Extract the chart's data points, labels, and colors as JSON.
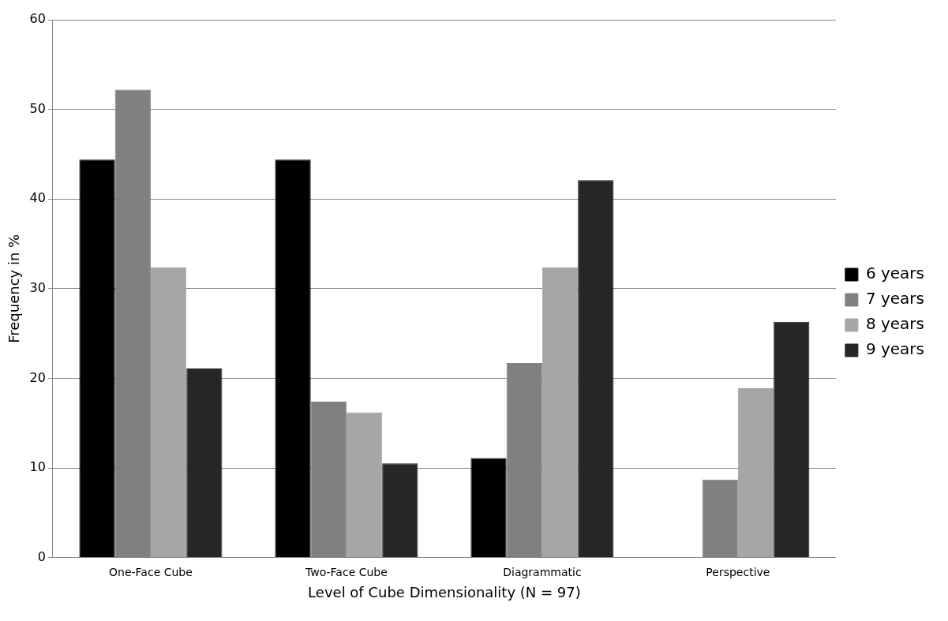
{
  "chart_data": {
    "type": "bar",
    "categories": [
      "One-Face Cube",
      "Two-Face Cube",
      "Diagrammatic",
      "Perspective"
    ],
    "xlabel": "Level of Cube Dimensionality (N = 97)",
    "ylabel": "Frequency in %",
    "ylim": [
      0,
      60
    ],
    "yticks": [
      0,
      10,
      20,
      30,
      40,
      50,
      60
    ],
    "grid": "y",
    "legend": "right",
    "series": [
      {
        "name": "6 years",
        "color": "#000000",
        "values": [
          44.4,
          44.4,
          11.1,
          0
        ]
      },
      {
        "name": "7 years",
        "color": "#808080",
        "values": [
          52.2,
          17.4,
          21.7,
          8.7
        ]
      },
      {
        "name": "8 years",
        "color": "#a6a6a6",
        "values": [
          32.4,
          16.2,
          32.4,
          18.9
        ]
      },
      {
        "name": "9 years",
        "color": "#262626",
        "values": [
          21.1,
          10.5,
          42.1,
          26.3
        ]
      }
    ]
  }
}
